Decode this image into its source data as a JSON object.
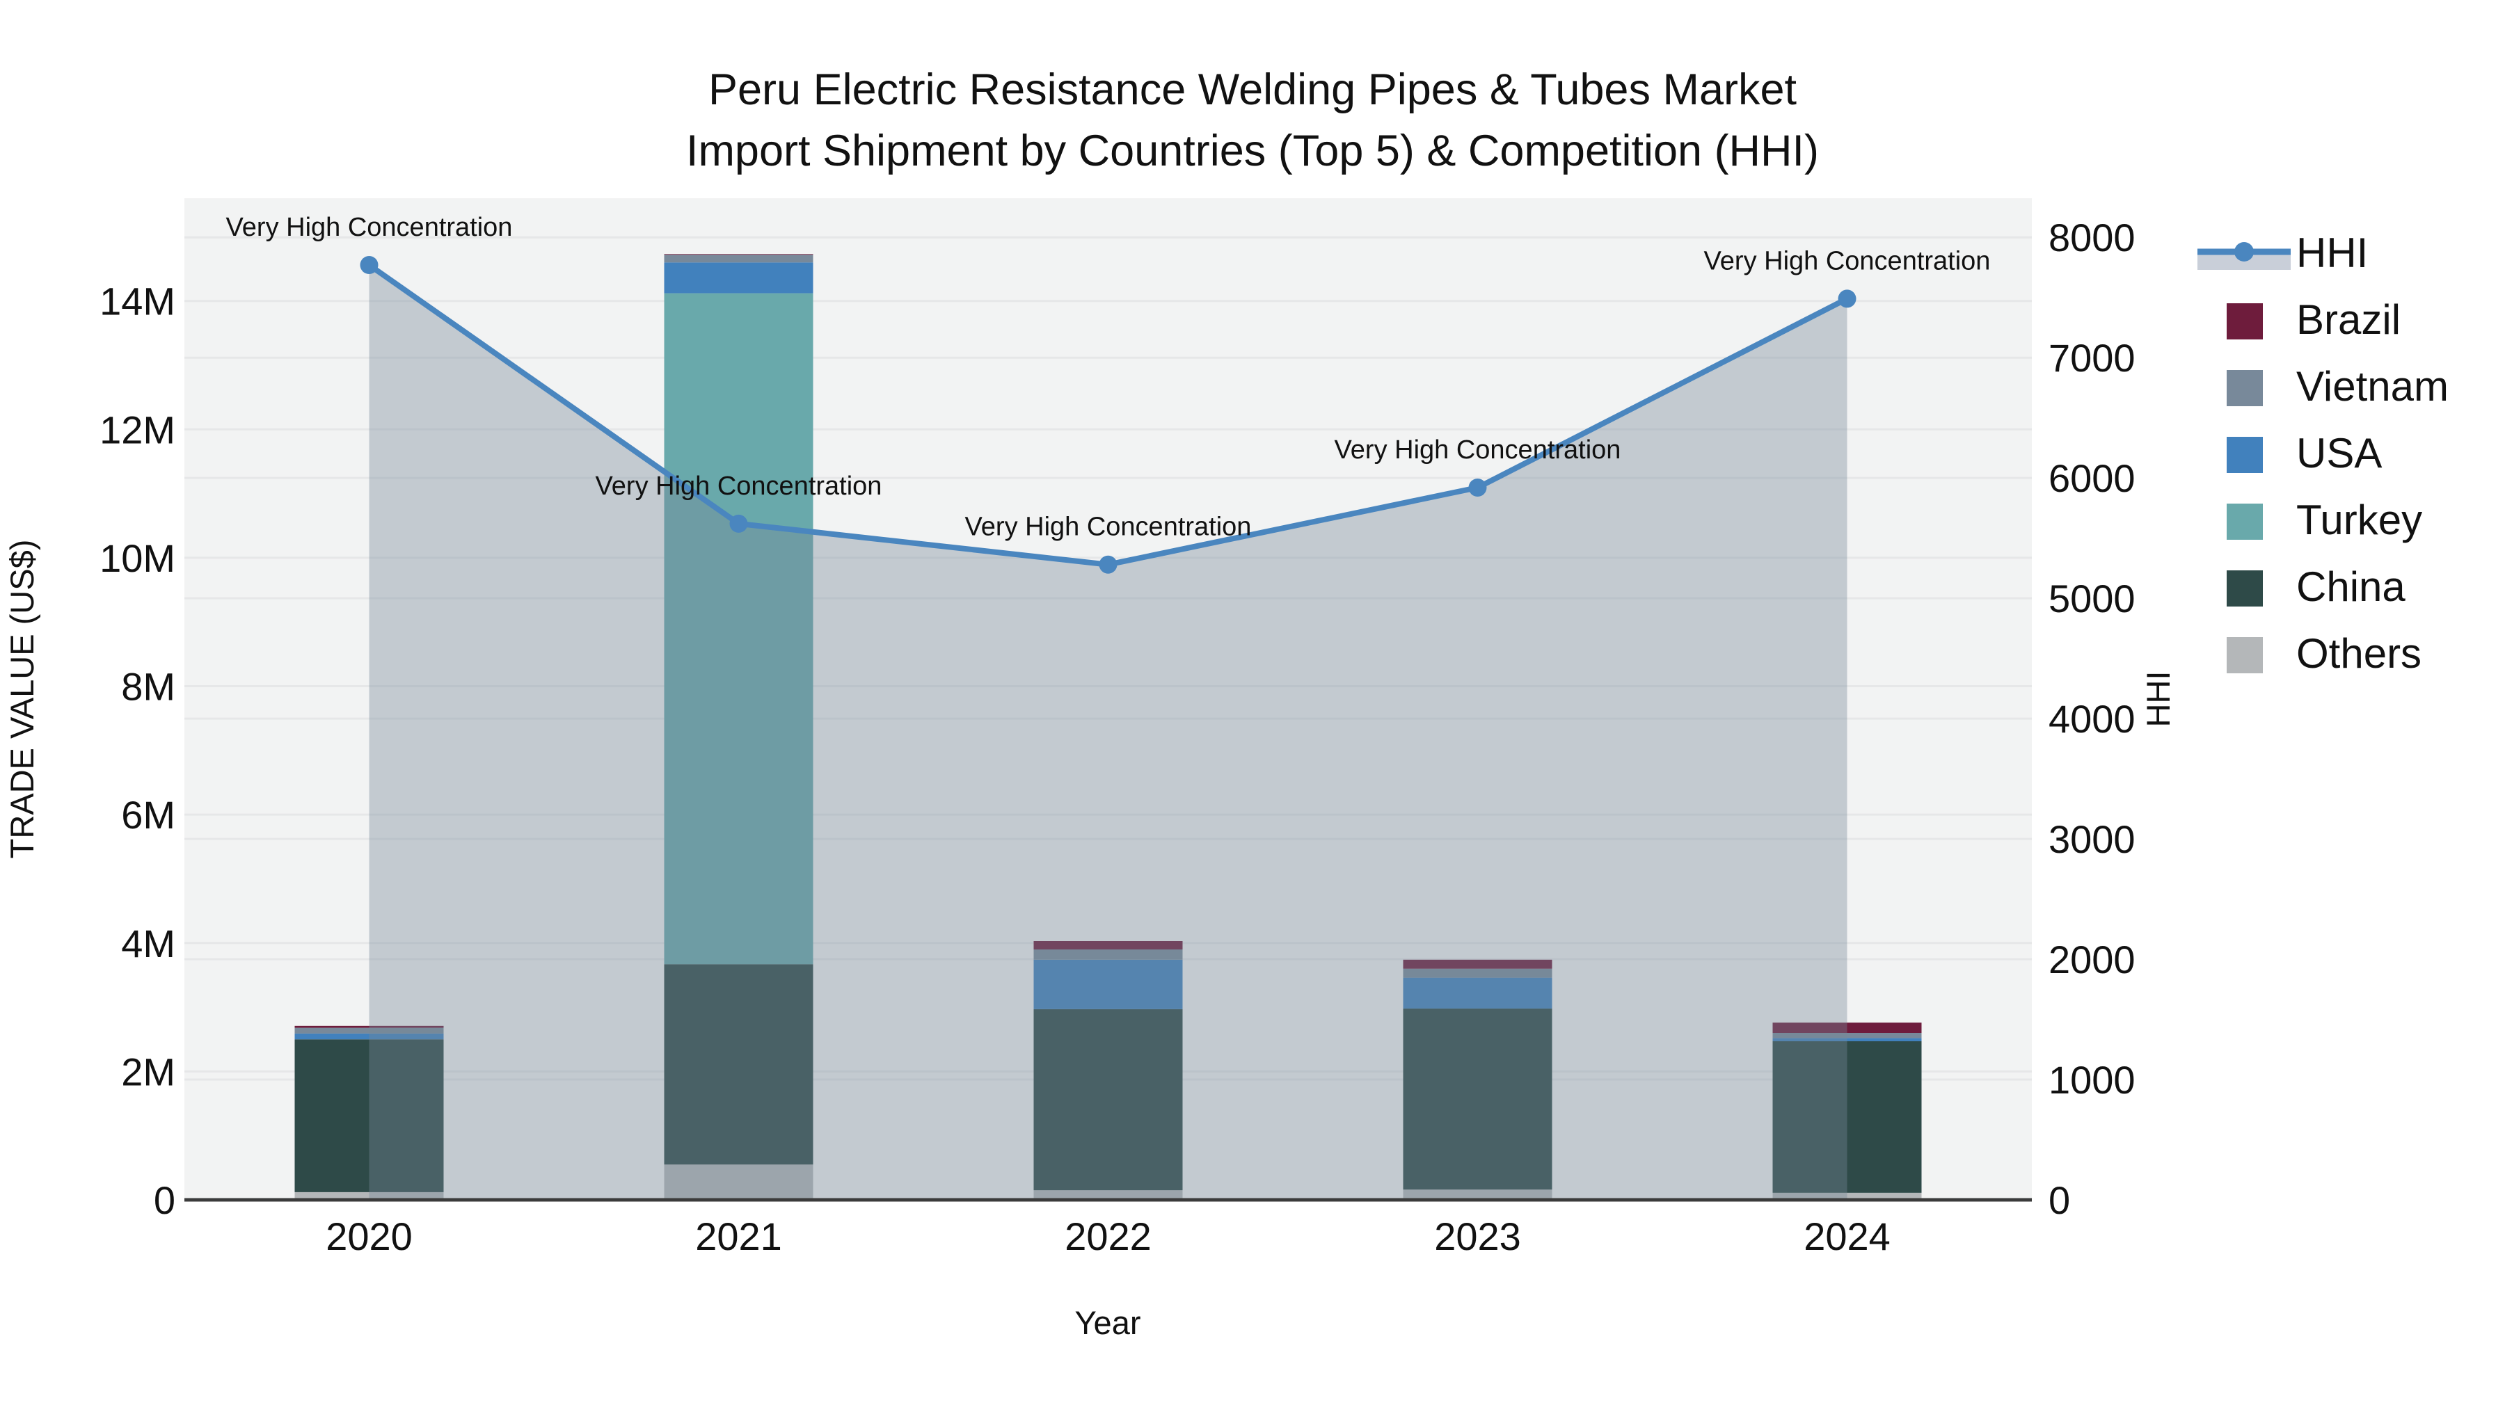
{
  "chart_data": {
    "type": "bar",
    "subtype": "stacked-bars-with-line",
    "title_line1": "Peru Electric Resistance Welding Pipes & Tubes Market",
    "title_line2": "Import Shipment by Countries (Top 5) & Competition (HHI)",
    "xlabel": "Year",
    "ylabel_left": "TRADE VALUE (US$)",
    "ylabel_right": "HHI",
    "categories": [
      "2020",
      "2021",
      "2022",
      "2023",
      "2024"
    ],
    "series": [
      {
        "name": "Others",
        "color": "#b4b7b9",
        "values": [
          120000,
          550000,
          150000,
          160000,
          110000
        ]
      },
      {
        "name": "China",
        "color": "#2e4a48",
        "values": [
          2380000,
          3120000,
          2820000,
          2820000,
          2360000
        ]
      },
      {
        "name": "Turkey",
        "color": "#69a9ab",
        "values": [
          0,
          10450000,
          0,
          0,
          0
        ]
      },
      {
        "name": "USA",
        "color": "#4181bd",
        "values": [
          90000,
          480000,
          770000,
          480000,
          50000
        ]
      },
      {
        "name": "Vietnam",
        "color": "#78899a",
        "values": [
          90000,
          120000,
          160000,
          140000,
          80000
        ]
      },
      {
        "name": "Brazil",
        "color": "#6e1c3c",
        "values": [
          30000,
          10000,
          130000,
          140000,
          160000
        ]
      }
    ],
    "line_series": {
      "name": "HHI",
      "color": "#4a86bf",
      "area_fill": "rgba(119,136,153,0.38)",
      "values": [
        7770,
        5620,
        5280,
        5920,
        7490
      ]
    },
    "annotations": [
      {
        "x": "2020",
        "text": "Very High Concentration"
      },
      {
        "x": "2021",
        "text": "Very High Concentration"
      },
      {
        "x": "2022",
        "text": "Very High Concentration"
      },
      {
        "x": "2023",
        "text": "Very High Concentration"
      },
      {
        "x": "2024",
        "text": "Very High Concentration"
      }
    ],
    "yticks_left": {
      "values": [
        0,
        2000000,
        4000000,
        6000000,
        8000000,
        10000000,
        12000000,
        14000000
      ],
      "labels": [
        "0",
        "2M",
        "4M",
        "6M",
        "8M",
        "10M",
        "12M",
        "14M"
      ]
    },
    "yticks_right": {
      "values": [
        0,
        1000,
        2000,
        3000,
        4000,
        5000,
        6000,
        7000,
        8000
      ],
      "labels": [
        "0",
        "1000",
        "2000",
        "3000",
        "4000",
        "5000",
        "6000",
        "7000",
        "8000"
      ]
    },
    "ylim_left": [
      0,
      15600000
    ],
    "ylim_right": [
      0,
      8325
    ],
    "grid": true,
    "legend_position": "right",
    "legend_items": [
      "HHI",
      "Brazil",
      "Vietnam",
      "USA",
      "Turkey",
      "China",
      "Others"
    ],
    "colors": {
      "plot_background": "#f2f3f3",
      "figure_background": "#ffffff",
      "gridline": "#e6e7e8",
      "axis_line": "#3b3b3b",
      "hhi_line": "#4a86bf",
      "legend_area_swatch": "#c9cfd9"
    }
  }
}
